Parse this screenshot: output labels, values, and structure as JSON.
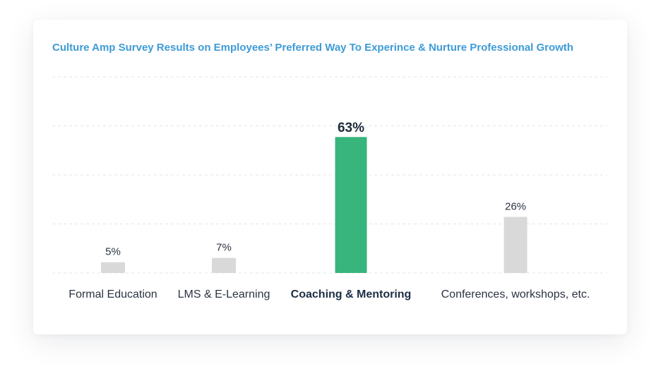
{
  "chart_data": {
    "type": "bar",
    "title": "Culture Amp Survey Results on Employees’ Preferred Way To Experince & Nurture Professional Growth",
    "xlabel": "",
    "ylabel": "",
    "categories": [
      "Formal Education",
      "LMS & E-Learning",
      "Coaching & Mentoring",
      "Conferences, workshops, etc."
    ],
    "values": [
      5,
      7,
      63,
      26
    ],
    "value_labels": [
      "5%",
      "7%",
      "63%",
      "26%"
    ],
    "highlight_index": 2,
    "ylim": [
      0,
      100
    ],
    "grid": true,
    "legend": "none"
  },
  "colors": {
    "title": "#3e9bd6",
    "bar": "#d9d9d9",
    "bar_highlight": "#38b47d",
    "gridline": "#e1e4e8",
    "text": "#2b3442",
    "text_highlight": "#1d2f45"
  }
}
